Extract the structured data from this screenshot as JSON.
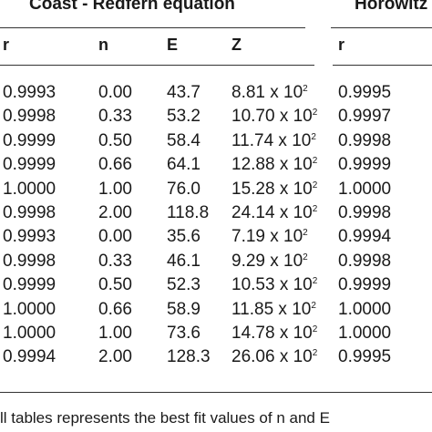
{
  "groups": {
    "coast_redfern": "Coast - Redfern equation",
    "horowitz": "Horowitz"
  },
  "columns": {
    "r": "r",
    "n": "n",
    "E": "E",
    "Z": "Z",
    "r2": "r"
  },
  "rows": [
    {
      "r": "0.9993",
      "n": "0.00",
      "E": "43.7",
      "Z": "8.81 x 10",
      "exp": "2",
      "r2": "0.9995"
    },
    {
      "r": "0.9998",
      "n": "0.33",
      "E": "53.2",
      "Z": "10.70 x 10",
      "exp": "2",
      "r2": "0.9997"
    },
    {
      "r": "0.9999",
      "n": "0.50",
      "E": "58.4",
      "Z": "11.74 x 10",
      "exp": "2",
      "r2": "0.9998"
    },
    {
      "r": "0.9999",
      "n": "0.66",
      "E": "64.1",
      "Z": "12.88 x 10",
      "exp": "2",
      "r2": "0.9999"
    },
    {
      "r": "1.0000",
      "n": "1.00",
      "E": "76.0",
      "Z": "15.28 x 10",
      "exp": "2",
      "r2": "1.0000"
    },
    {
      "r": "0.9998",
      "n": "2.00",
      "E": "118.8",
      "Z": "24.14 x 10",
      "exp": "2",
      "r2": "0.9998"
    },
    {
      "r": "0.9993",
      "n": "0.00",
      "E": "35.6",
      "Z": "7.19 x 10",
      "exp": "2",
      "r2": "0.9994"
    },
    {
      "r": "0.9998",
      "n": "0.33",
      "E": "46.1",
      "Z": "9.29 x 10",
      "exp": "2",
      "r2": "0.9998"
    },
    {
      "r": "0.9999",
      "n": "0.50",
      "E": "52.3",
      "Z": "10.53 x 10",
      "exp": "2",
      "r2": "0.9999"
    },
    {
      "r": "1.0000",
      "n": "0.66",
      "E": "58.9",
      "Z": "11.85 x 10",
      "exp": "2",
      "r2": "1.0000"
    },
    {
      "r": "1.0000",
      "n": "1.00",
      "E": "73.6",
      "Z": "14.78 x 10",
      "exp": "2",
      "r2": "1.0000"
    },
    {
      "r": "0.9994",
      "n": "2.00",
      "E": "128.3",
      "Z": "26.06 x 10",
      "exp": "2",
      "r2": "0.9995"
    }
  ],
  "footer": "ll tables represents the best fit  values of n and E"
}
